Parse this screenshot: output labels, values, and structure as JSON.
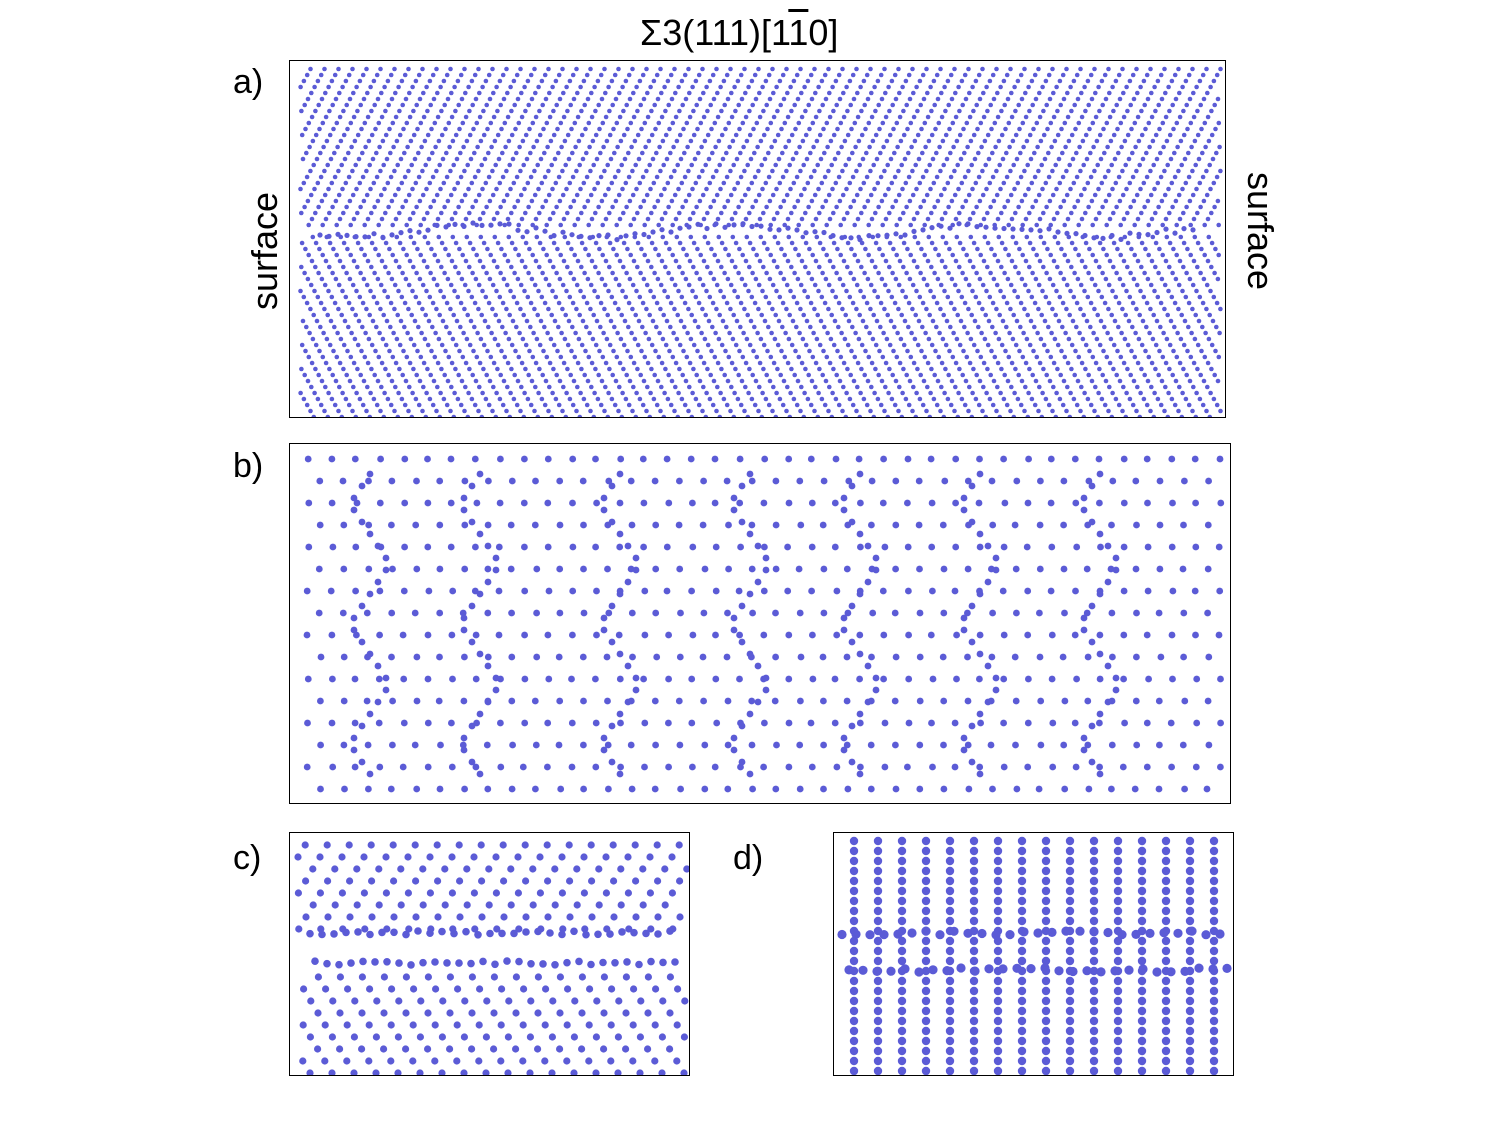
{
  "figure": {
    "title": {
      "prefix": "Σ3(111)[1",
      "overbar": "1",
      "suffix": "0]"
    },
    "side_labels": {
      "left": "surface",
      "right": "surface"
    },
    "panels": [
      {
        "id": "a",
        "label": "a)"
      },
      {
        "id": "b",
        "label": "b)"
      },
      {
        "id": "c",
        "label": "c)"
      },
      {
        "id": "d",
        "label": "d)"
      }
    ]
  },
  "colors": {
    "atom": "#5b5bd6",
    "border": "#000000",
    "background": "#ffffff"
  }
}
